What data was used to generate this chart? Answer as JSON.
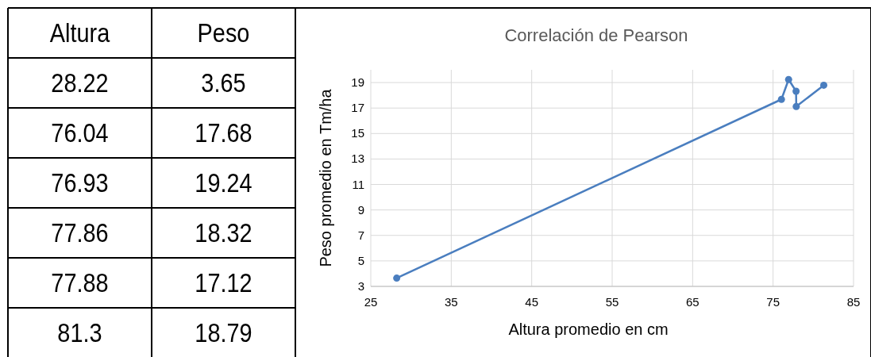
{
  "chart_data": [
    {
      "type": "other",
      "annotations": [
        "Altura",
        "Peso",
        "28.22",
        "3.65",
        "76.04",
        "17.68",
        "76.93",
        "19.24",
        "77.86",
        "18.32",
        "77.88",
        "17.12",
        "81.3",
        "18.79"
      ]
    },
    {
      "type": "line",
      "title": "Correlación de Pearson",
      "xlabel": "Altura promedio en cm",
      "ylabel": "Peso promedio en Tm/ha",
      "x": [
        28.22,
        76.04,
        76.93,
        77.86,
        77.88,
        81.3
      ],
      "series": [
        {
          "color": "#4a7ebf",
          "values": [
            3.65,
            17.68,
            19.24,
            18.32,
            17.12,
            18.79
          ]
        }
      ],
      "marker": "circle",
      "line_style": "solid",
      "grid": true,
      "xlim": [
        25,
        85
      ],
      "xticks": [
        25,
        35,
        45,
        55,
        65,
        75,
        85
      ],
      "ylim": [
        3,
        20
      ],
      "yticks": [
        3,
        5,
        7,
        9,
        11,
        13,
        15,
        17,
        19
      ]
    }
  ]
}
